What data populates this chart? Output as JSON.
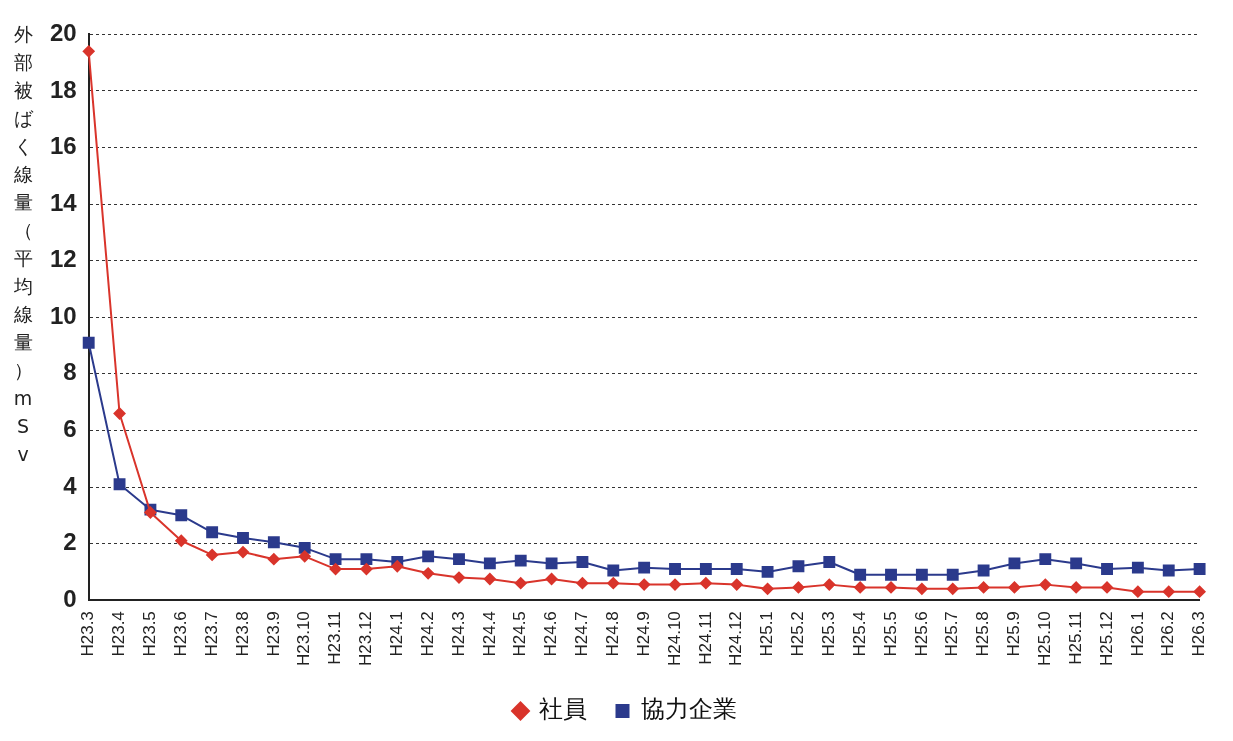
{
  "chart_data": {
    "type": "line",
    "ylabel": "外部被ばく線量（平均線量）mSv",
    "categories": [
      "H23.3",
      "H23.4",
      "H23.5",
      "H23.6",
      "H23.7",
      "H23.8",
      "H23.9",
      "H23.10",
      "H23.11",
      "H23.12",
      "H24.1",
      "H24.2",
      "H24.3",
      "H24.4",
      "H24.5",
      "H24.6",
      "H24.7",
      "H24.8",
      "H24.9",
      "H24.10",
      "H24.11",
      "H24.12",
      "H25.1",
      "H25.2",
      "H25.3",
      "H25.4",
      "H25.5",
      "H25.6",
      "H25.7",
      "H25.8",
      "H25.9",
      "H25.10",
      "H25.11",
      "H25.12",
      "H26.1",
      "H26.2",
      "H26.3"
    ],
    "series": [
      {
        "name": "社員",
        "color": "#d9342b",
        "marker": "diamond",
        "values": [
          19.4,
          6.6,
          3.1,
          2.1,
          1.6,
          1.7,
          1.45,
          1.55,
          1.1,
          1.1,
          1.2,
          0.95,
          0.8,
          0.75,
          0.6,
          0.75,
          0.6,
          0.6,
          0.55,
          0.55,
          0.6,
          0.55,
          0.4,
          0.45,
          0.55,
          0.45,
          0.45,
          0.4,
          0.4,
          0.45,
          0.45,
          0.55,
          0.45,
          0.45,
          0.3,
          0.3,
          0.3
        ]
      },
      {
        "name": "協力企業",
        "color": "#2b3a8c",
        "marker": "square",
        "values": [
          9.1,
          4.1,
          3.2,
          3.0,
          2.4,
          2.2,
          2.05,
          1.85,
          1.45,
          1.45,
          1.35,
          1.55,
          1.45,
          1.3,
          1.4,
          1.3,
          1.35,
          1.05,
          1.15,
          1.1,
          1.1,
          1.1,
          1.0,
          1.2,
          1.35,
          0.9,
          0.9,
          0.9,
          0.9,
          1.05,
          1.3,
          1.45,
          1.3,
          1.1,
          1.15,
          1.05,
          1.1
        ]
      }
    ],
    "ylim": [
      0,
      20
    ],
    "yticks": [
      0,
      2,
      4,
      6,
      8,
      10,
      12,
      14,
      16,
      18,
      20
    ],
    "grid": "y",
    "legend": "bottom",
    "line_style": "solid"
  }
}
